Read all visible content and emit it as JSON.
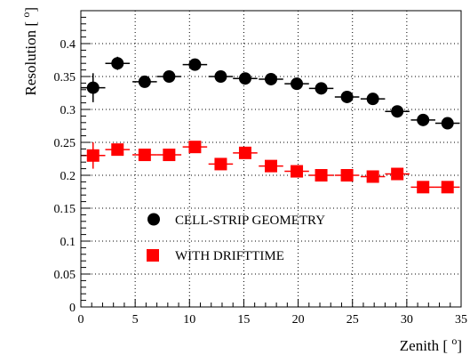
{
  "chart_data": {
    "type": "scatter",
    "xlabel": "Zenith [ ",
    "xlabel_unit": "o",
    "xlabel_close": "]",
    "ylabel": "Resolution [ ",
    "ylabel_unit": "o",
    "ylabel_close": "]",
    "xlim": [
      0,
      35
    ],
    "ylim": [
      0,
      0.45
    ],
    "xticks": [
      0,
      5,
      10,
      15,
      20,
      25,
      30,
      35
    ],
    "xtick_labels": [
      "0",
      "5",
      "10",
      "15",
      "20",
      "25",
      "30",
      "35"
    ],
    "yticks": [
      0,
      0.05,
      0.1,
      0.15,
      0.2,
      0.25,
      0.3,
      0.35,
      0.4
    ],
    "ytick_labels": [
      "0",
      "0.05",
      "0.1",
      "0.15",
      "0.2",
      "0.25",
      "0.3",
      "0.35",
      "0.4"
    ],
    "grid": true,
    "legend_position": "lower-center",
    "series": [
      {
        "name": "CELL-STRIP GEOMETRY",
        "marker": "circle",
        "color": "#000000",
        "x": [
          1.125,
          3.375,
          5.875,
          8.125,
          10.5,
          12.875,
          15.125,
          17.5,
          19.875,
          22.125,
          24.5,
          26.875,
          29.125,
          31.5,
          33.75
        ],
        "y": [
          0.333,
          0.37,
          0.342,
          0.35,
          0.368,
          0.35,
          0.347,
          0.346,
          0.339,
          0.332,
          0.319,
          0.316,
          0.297,
          0.284,
          0.279
        ],
        "yerr": [
          0.022,
          0.01,
          0.007,
          0.007,
          0.008,
          0.006,
          0.005,
          0.005,
          0.005,
          0.005,
          0.005,
          0.005,
          0.005,
          0.005,
          0.004
        ],
        "xerr": 1.125
      },
      {
        "name": "WITH DRIFTTIME",
        "marker": "square",
        "color": "#ff0000",
        "x": [
          1.125,
          3.375,
          5.875,
          8.125,
          10.5,
          12.875,
          15.125,
          17.5,
          19.875,
          22.125,
          24.5,
          26.875,
          29.125,
          31.5,
          33.75
        ],
        "y": [
          0.23,
          0.239,
          0.231,
          0.231,
          0.243,
          0.217,
          0.234,
          0.214,
          0.206,
          0.2,
          0.2,
          0.198,
          0.202,
          0.182,
          0.182
        ],
        "yerr": [
          0.02,
          0.009,
          0.006,
          0.006,
          0.007,
          0.005,
          0.005,
          0.005,
          0.005,
          0.004,
          0.004,
          0.004,
          0.004,
          0.004,
          0.004
        ],
        "xerr": 1.125
      }
    ]
  }
}
